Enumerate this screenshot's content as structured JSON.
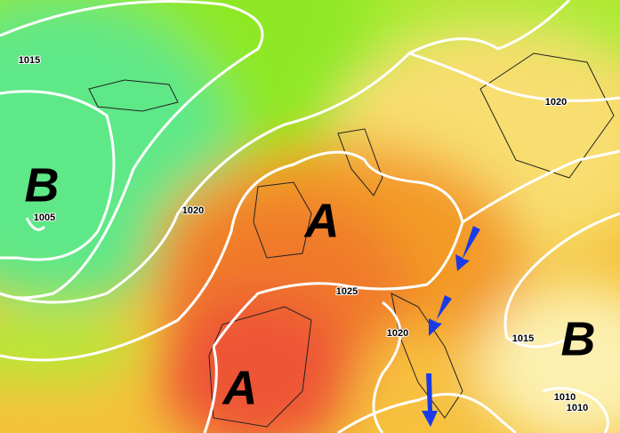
{
  "pressure_centers": [
    {
      "label": "B"
    },
    {
      "label": "A"
    },
    {
      "label": "A"
    },
    {
      "label": "B"
    }
  ],
  "isobar_labels": [
    "1015",
    "1005",
    "1020",
    "1020",
    "1025",
    "1020",
    "1015",
    "1010",
    "1010"
  ]
}
